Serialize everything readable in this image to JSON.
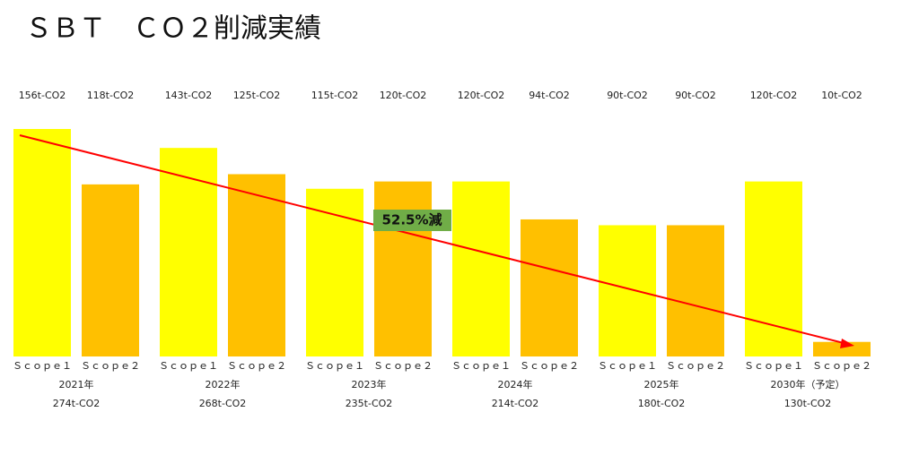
{
  "chart_data": {
    "type": "bar",
    "title": "ＳＢＴ　ＣＯ２削減実績",
    "categories": [
      "2021年",
      "2022年",
      "2023年",
      "2024年",
      "2025年",
      "2030年（予定）"
    ],
    "series": [
      {
        "name": "Ｓｃｏｐｅ１",
        "color": "#ffff00",
        "values": [
          156,
          143,
          115,
          120,
          90,
          120
        ],
        "value_labels": [
          "156t-CO2",
          "143t-CO2",
          "115t-CO2",
          "120t-CO2",
          "90t-CO2",
          "120t-CO2"
        ]
      },
      {
        "name": "Ｓｃｏｐｅ２",
        "color": "#ffc000",
        "values": [
          118,
          125,
          120,
          94,
          90,
          10
        ],
        "value_labels": [
          "118t-CO2",
          "125t-CO2",
          "120t-CO2",
          "94t-CO2",
          "90t-CO2",
          "10t-CO2"
        ]
      }
    ],
    "totals": {
      "values": [
        274,
        268,
        235,
        214,
        180,
        130
      ],
      "value_labels": [
        "274t-CO2",
        "268t-CO2",
        "235t-CO2",
        "214t-CO2",
        "180t-CO2",
        "130t-CO2"
      ]
    },
    "annotation": "52.5%減"
  }
}
